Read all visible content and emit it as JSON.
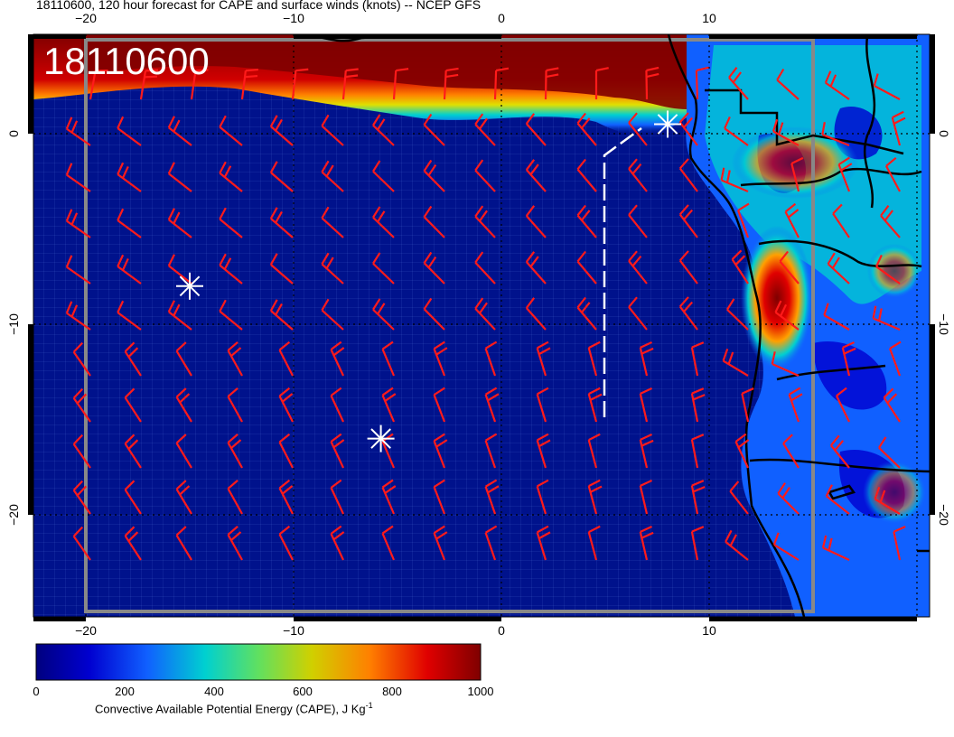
{
  "title": "18110600, 120 hour forecast for CAPE and surface winds (knots) -- NCEP GFS",
  "map_stamp": "18110600",
  "axes": {
    "lon_ticks_top": [
      "−20",
      "−10",
      "0",
      "10"
    ],
    "lon_ticks_bottom": [
      "−20",
      "−10",
      "0",
      "10"
    ],
    "lat_ticks_left": [
      "0",
      "−10",
      "−20"
    ],
    "lat_ticks_right": [
      "0",
      "−10",
      "−20"
    ]
  },
  "colorbar": {
    "ticks": [
      "0",
      "200",
      "400",
      "600",
      "800",
      "1000"
    ],
    "label": "Convective Available Potential Energy (CAPE), J Kg",
    "label_sup": "-1",
    "colors": [
      "#00007f",
      "#0000d0",
      "#1060ff",
      "#00d0d0",
      "#60e060",
      "#d0d000",
      "#ff8000",
      "#e00000",
      "#7f0000"
    ]
  },
  "colors": {
    "ocean": "#00128c",
    "barb": "#ff1a1a",
    "coast": "#000000",
    "marker": "#ffffff",
    "track": "#ffffff"
  },
  "markers": [
    {
      "name": "star-marker-1",
      "lon": 8.0,
      "lat": 0.5
    },
    {
      "name": "star-marker-2",
      "lon": -15.0,
      "lat": -8.0
    },
    {
      "name": "star-marker-3",
      "lon": -5.8,
      "lat": -16.0
    }
  ]
}
